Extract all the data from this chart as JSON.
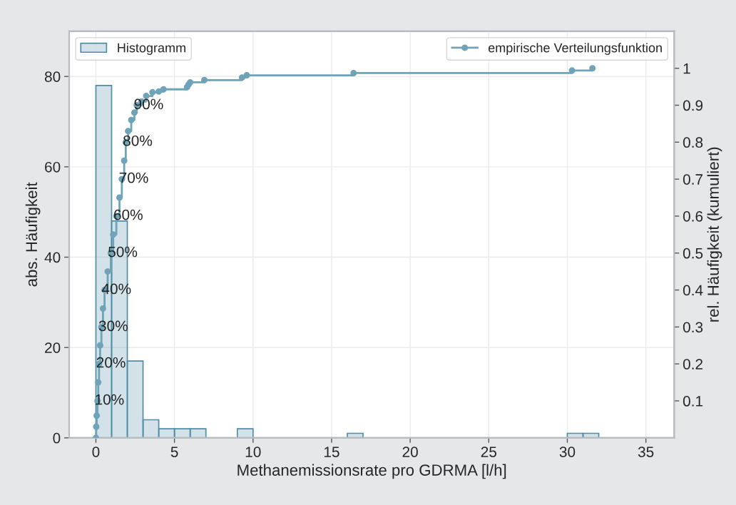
{
  "chart_data": {
    "type": "histogram",
    "xlabel": "Methanemissionsrate pro GDRMA [l/h]",
    "ylabel": "abs. Häufigkeit",
    "y2label": "rel. Häufigkeit (kumuliert)",
    "xlim": [
      -1.7,
      36.8
    ],
    "xticks": [
      0,
      5,
      10,
      15,
      20,
      25,
      30,
      35
    ],
    "ylim": [
      0,
      90
    ],
    "yticks": [
      0,
      20,
      40,
      60,
      80
    ],
    "y2lim": [
      0,
      1.1
    ],
    "y2ticks": [
      0.1,
      0.2,
      0.3,
      0.4,
      0.5,
      0.6,
      0.7,
      0.8,
      0.9,
      1
    ],
    "grid": true,
    "legend": "top",
    "series": [
      {
        "name": "Histogramm",
        "color": "#4f8ca6",
        "bins": [
          0,
          1,
          2,
          3,
          4,
          5,
          6,
          7,
          8,
          9,
          10,
          11,
          12,
          13,
          14,
          15,
          16,
          17,
          18,
          19,
          20,
          21,
          22,
          23,
          24,
          25,
          26,
          27,
          28,
          29,
          30,
          31,
          32
        ],
        "values": [
          78,
          48,
          17,
          4,
          2,
          2,
          2,
          0,
          0,
          2,
          0,
          0,
          0,
          0,
          0,
          0,
          1,
          0,
          0,
          0,
          0,
          0,
          0,
          0,
          0,
          0,
          0,
          0,
          0,
          0,
          1,
          1
        ]
      },
      {
        "type": "step",
        "name": "empirische Verteilungsfunktion",
        "color": "#6fa3b8",
        "axis": "y2",
        "marker": "circle",
        "line_style": "solid",
        "x": [
          0.0,
          0.02,
          0.05,
          0.1,
          0.15,
          0.2,
          0.27,
          0.35,
          0.45,
          0.55,
          0.75,
          0.95,
          1.1,
          1.3,
          1.5,
          1.65,
          1.8,
          1.9,
          2.05,
          2.25,
          2.45,
          2.6,
          2.9,
          3.2,
          3.6,
          4.0,
          4.3,
          5.8,
          5.9,
          6.0,
          6.9,
          9.3,
          9.6,
          16.4,
          30.3,
          31.6
        ],
        "values": [
          0.0,
          0.03,
          0.06,
          0.1,
          0.15,
          0.2,
          0.25,
          0.3,
          0.35,
          0.4,
          0.45,
          0.5,
          0.55,
          0.6,
          0.65,
          0.7,
          0.75,
          0.8,
          0.83,
          0.86,
          0.88,
          0.9,
          0.91,
          0.925,
          0.935,
          0.937,
          0.943,
          0.949,
          0.956,
          0.962,
          0.968,
          0.975,
          0.981,
          0.987,
          0.994,
          1.0
        ]
      }
    ],
    "annotations": [
      {
        "text": "10%",
        "x": 0.1,
        "y": 8.2
      },
      {
        "text": "20%",
        "x": 0.2,
        "y": 16.4
      },
      {
        "text": "30%",
        "x": 0.35,
        "y": 24.5
      },
      {
        "text": "40%",
        "x": 0.55,
        "y": 32.7
      },
      {
        "text": "50%",
        "x": 0.95,
        "y": 40.9
      },
      {
        "text": "60%",
        "x": 1.3,
        "y": 49.1
      },
      {
        "text": "70%",
        "x": 1.65,
        "y": 57.3
      },
      {
        "text": "80%",
        "x": 1.9,
        "y": 65.5
      },
      {
        "text": "90%",
        "x": 2.6,
        "y": 73.6
      }
    ]
  }
}
